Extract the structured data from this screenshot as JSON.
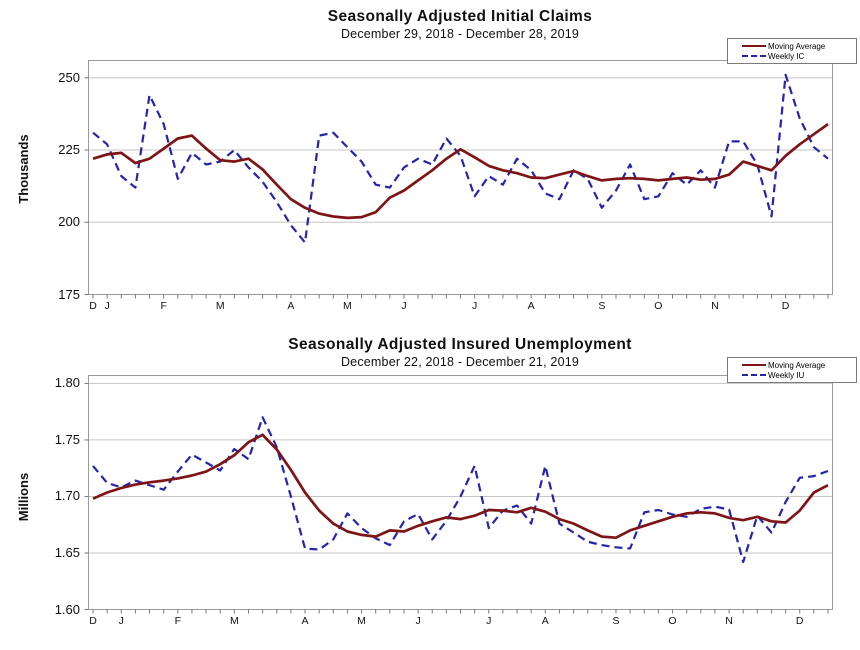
{
  "colors": {
    "moving_average": "#7f1416",
    "weekly": "#2424ac",
    "gridline": "#c6c6c6",
    "plot_border": "#9a9a9a",
    "tick": "#777777",
    "text": "#111111"
  },
  "chart_data": [
    {
      "type": "line",
      "title": "Seasonally Adjusted Initial Claims",
      "subtitle": "December 29, 2018 - December 28, 2019",
      "ylabel": "Thousands",
      "ylim": [
        175,
        256
      ],
      "y_ticks": [
        175,
        200,
        225,
        250
      ],
      "y_tick_labels": [
        "175",
        "200",
        "225",
        "250"
      ],
      "x_tick_labels": [
        "D",
        "J",
        "F",
        "M",
        "A",
        "M",
        "J",
        "J",
        "A",
        "S",
        "O",
        "N",
        "D"
      ],
      "x_tick_weeks": [
        0,
        1,
        5,
        9,
        14,
        18,
        22,
        27,
        31,
        36,
        40,
        44,
        49
      ],
      "n_weeks": 53,
      "grid": "horizontal-only",
      "legend_position": "top-right",
      "legend": [
        {
          "label": "Moving Average",
          "style": "solid"
        },
        {
          "label": "Weekly IC",
          "style": "dashed"
        }
      ],
      "series": [
        {
          "name": "Moving Average",
          "style": "solid",
          "values": [
            222,
            223.5,
            224,
            220.5,
            222,
            225.5,
            229,
            230,
            225.5,
            221.5,
            221,
            222,
            218.3,
            213,
            208,
            205,
            203,
            202,
            201.5,
            201.8,
            203.5,
            208.5,
            211,
            214.5,
            218,
            222,
            225.25,
            222.5,
            219.5,
            218,
            217,
            215.5,
            215.25,
            216.5,
            217.75,
            216,
            214.5,
            215,
            215.25,
            215,
            214.5,
            215,
            215.5,
            214.75,
            215,
            216.5,
            221,
            219.5,
            218,
            223,
            227,
            230.5,
            234
          ]
        },
        {
          "name": "Weekly IC",
          "style": "dashed",
          "values": [
            231,
            227,
            216,
            212,
            244,
            234,
            215,
            224,
            220,
            221,
            225,
            219,
            214,
            207,
            199,
            193,
            230,
            231,
            226,
            221,
            213,
            212,
            219,
            222,
            220,
            229,
            223,
            209,
            216,
            213,
            222,
            218,
            210,
            208,
            218,
            215,
            205,
            211,
            220,
            208,
            209,
            217,
            213,
            218,
            212,
            228,
            228,
            220,
            202,
            251,
            236,
            226,
            222
          ]
        }
      ]
    },
    {
      "type": "line",
      "title": "Seasonally Adjusted Insured Unemployment",
      "subtitle": "December 22, 2018 - December 21, 2019",
      "ylabel": "Millions",
      "ylim": [
        1.6,
        1.807
      ],
      "y_ticks": [
        1.6,
        1.65,
        1.7,
        1.75,
        1.8
      ],
      "y_tick_labels": [
        "1.60",
        "1.65",
        "1.70",
        "1.75",
        "1.80"
      ],
      "x_tick_labels": [
        "D",
        "J",
        "F",
        "M",
        "A",
        "M",
        "J",
        "J",
        "A",
        "S",
        "O",
        "N",
        "D"
      ],
      "x_tick_weeks": [
        0,
        2,
        6,
        10,
        15,
        19,
        23,
        28,
        32,
        37,
        41,
        45,
        50
      ],
      "n_weeks": 53,
      "grid": "horizontal-only",
      "legend_position": "top-right",
      "legend": [
        {
          "label": "Moving Average",
          "style": "solid"
        },
        {
          "label": "Weekly IU",
          "style": "dashed"
        }
      ],
      "series": [
        {
          "name": "Moving Average",
          "style": "solid",
          "values": [
            1.698,
            1.7035,
            1.7075,
            1.7105,
            1.7125,
            1.714,
            1.716,
            1.7185,
            1.722,
            1.7285,
            1.7365,
            1.748,
            1.7545,
            1.7415,
            1.7235,
            1.7035,
            1.6875,
            1.676,
            1.669,
            1.666,
            1.6645,
            1.67,
            1.669,
            1.674,
            1.678,
            1.6815,
            1.68,
            1.683,
            1.688,
            1.6875,
            1.686,
            1.69,
            1.6865,
            1.68,
            1.676,
            1.67,
            1.6645,
            1.6635,
            1.67,
            1.674,
            1.678,
            1.682,
            1.685,
            1.686,
            1.685,
            1.681,
            1.679,
            1.682,
            1.678,
            1.677,
            1.6875,
            1.7035,
            1.71
          ]
        },
        {
          "name": "Weekly IU",
          "style": "dashed",
          "values": [
            1.727,
            1.712,
            1.708,
            1.714,
            1.71,
            1.706,
            1.722,
            1.737,
            1.73,
            1.723,
            1.742,
            1.733,
            1.77,
            1.7435,
            1.7,
            1.654,
            1.653,
            1.662,
            1.685,
            1.672,
            1.663,
            1.657,
            1.678,
            1.6845,
            1.662,
            1.6785,
            1.7,
            1.727,
            1.672,
            1.6875,
            1.692,
            1.676,
            1.727,
            1.676,
            1.668,
            1.66,
            1.657,
            1.655,
            1.654,
            1.686,
            1.688,
            1.684,
            1.682,
            1.689,
            1.691,
            1.6885,
            1.642,
            1.683,
            1.668,
            1.695,
            1.7165,
            1.718,
            1.7225
          ]
        }
      ]
    }
  ]
}
